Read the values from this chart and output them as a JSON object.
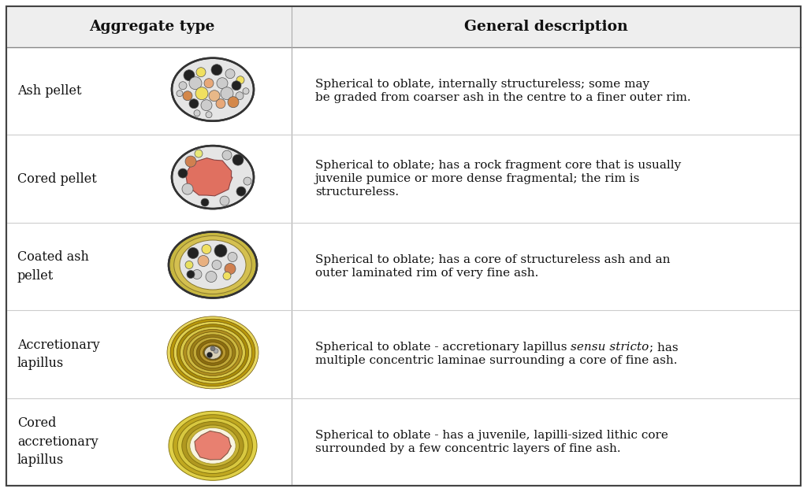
{
  "background_color": "#ffffff",
  "col1_header": "Aggregate type",
  "col2_header": "General description",
  "header_bg": "#eeeeee",
  "divider_color": "#aaaaaa",
  "border_color": "#444444",
  "rows": [
    {
      "name": "Ash pellet",
      "desc_line1": "Spherical to oblate, internally structureless; some may",
      "desc_line2": "be graded from coarser ash in the centre to a finer outer rim.",
      "desc_line3": ""
    },
    {
      "name": "Cored pellet",
      "desc_line1": "Spherical to oblate; has a rock fragment core that is usually",
      "desc_line2": "juvenile pumice or more dense fragmental; the rim is",
      "desc_line3": "structureless."
    },
    {
      "name": "Coated ash\npellet",
      "desc_line1": "Spherical to oblate; has a core of structureless ash and an",
      "desc_line2": "outer laminated rim of very fine ash.",
      "desc_line3": ""
    },
    {
      "name": "Accretionary\nlapillus",
      "desc_line1_normal": "Spherical to oblate - accretionary lapillus ",
      "desc_line1_italic": "sensu stricto",
      "desc_line1_end": "; has",
      "desc_line2": "multiple concentric laminae surrounding a core of fine ash.",
      "desc_line3": ""
    },
    {
      "name": "Cored\naccretionary\nlapillus",
      "desc_line1": "Spherical to oblate - has a juvenile, lapilli-sized lithic core",
      "desc_line2": "surrounded by a few concentric layers of fine ash.",
      "desc_line3": ""
    }
  ]
}
